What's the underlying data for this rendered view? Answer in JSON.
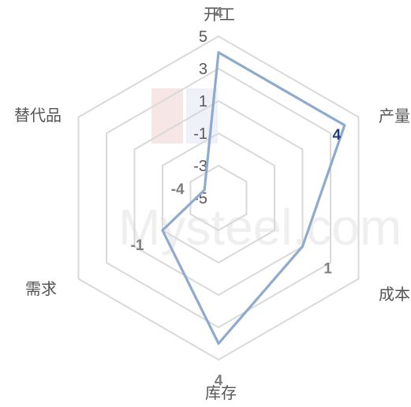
{
  "chart_data": {
    "type": "radar",
    "categories": [
      "开工",
      "产量",
      "成本",
      "库存",
      "需求",
      "替代品"
    ],
    "values": [
      4,
      4,
      1,
      4,
      -1,
      -4
    ],
    "rlim": [
      -5,
      5
    ],
    "tick_labels": [
      "5",
      "3",
      "1",
      "-1",
      "-3",
      "-5"
    ],
    "grid": true,
    "series_color": "#8eabce",
    "grid_color": "#d9d9d9",
    "highlight_label_color": "#1f3f7a"
  },
  "watermark": "Mysteel.com"
}
